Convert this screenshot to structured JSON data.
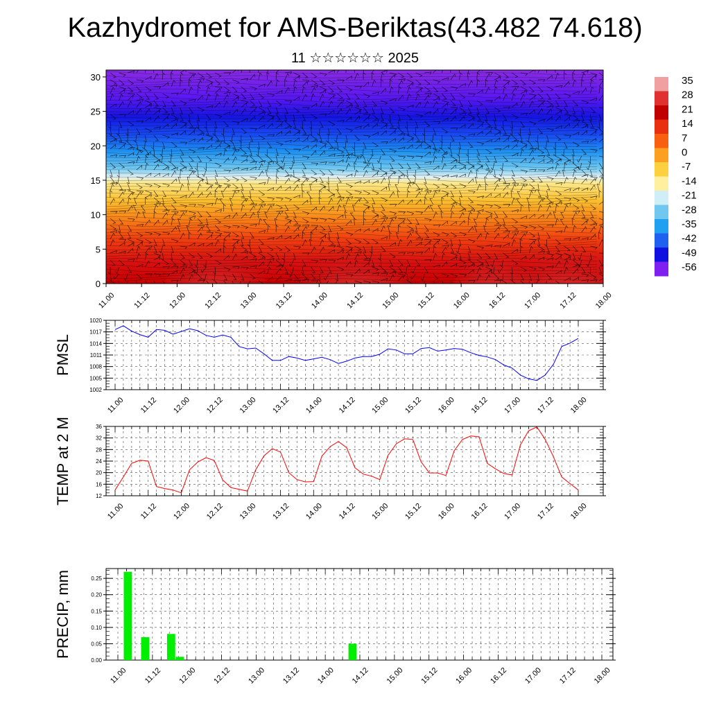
{
  "title": "Kazhydromet for AMS-Beriktas(43.482 74.618)",
  "subtitle": "11 ☆☆☆☆☆☆ 2025",
  "time_labels": [
    "11.00",
    "11.12",
    "12.00",
    "12.12",
    "13.00",
    "13.12",
    "14.00",
    "14.12",
    "15.00",
    "15.12",
    "16.00",
    "16.12",
    "17.00",
    "17.12",
    "18.00"
  ],
  "colorbar": {
    "labels": [
      "35",
      "28",
      "21",
      "14",
      "7",
      "0",
      "-7",
      "-14",
      "-21",
      "-28",
      "-35",
      "-42",
      "-49",
      "-56"
    ],
    "colors": [
      "#f0a0a0",
      "#e03030",
      "#c00000",
      "#e83010",
      "#f86010",
      "#fba020",
      "#fdd040",
      "#fff0a0",
      "#d0eef8",
      "#70c8f0",
      "#20a0f0",
      "#2060f0",
      "#1010e0",
      "#8020f0"
    ]
  },
  "chart_data": [
    {
      "type": "heatmap",
      "title": "Kazhydromet for AMS-Beriktas(43.482 74.618)",
      "xlabel": "",
      "ylabel": "",
      "x": [
        "11.00",
        "11.12",
        "12.00",
        "12.12",
        "13.00",
        "13.12",
        "14.00",
        "14.12",
        "15.00",
        "15.12",
        "16.00",
        "16.12",
        "17.00",
        "17.12",
        "18.00"
      ],
      "yticks": [
        0,
        5,
        10,
        15,
        20,
        25,
        30
      ],
      "ylim": [
        0,
        31
      ],
      "colorbar_range": [
        -56,
        35
      ]
    },
    {
      "type": "line",
      "ylabel": "PMSL",
      "yticks": [
        1002,
        1005,
        1008,
        1011,
        1014,
        1017,
        1020
      ],
      "ylim": [
        1002,
        1020
      ],
      "series": [
        {
          "color": "#0000ff",
          "values": [
            1017.6,
            1018.6,
            1017.2,
            1016.3,
            1015.6,
            1017.6,
            1017.4,
            1016.4,
            1017.1,
            1017.8,
            1017.3,
            1016.1,
            1015.6,
            1016.2,
            1015.6,
            1013.2,
            1012.6,
            1012.8,
            1011.3,
            1009.6,
            1009.6,
            1010.6,
            1010.2,
            1009.6,
            1010.0,
            1010.4,
            1009.8,
            1008.8,
            1009.4,
            1010.2,
            1010.6,
            1010.6,
            1011.2,
            1012.6,
            1012.3,
            1011.3,
            1011.3,
            1012.7,
            1012.9,
            1012.0,
            1012.3,
            1012.7,
            1012.5,
            1011.6,
            1010.9,
            1010.5,
            1009.8,
            1008.4,
            1007.6,
            1005.8,
            1004.8,
            1004.4,
            1005.8,
            1008.6,
            1013.2,
            1014.1,
            1015.3
          ]
        }
      ]
    },
    {
      "type": "line",
      "ylabel": "TEMP at 2 M",
      "yticks": [
        12,
        16,
        20,
        24,
        28,
        32,
        36
      ],
      "ylim": [
        12,
        36
      ],
      "series": [
        {
          "color": "#ff0000",
          "values": [
            14.0,
            18.5,
            23.2,
            24.3,
            24.0,
            15.2,
            14.5,
            14.0,
            13.0,
            21.0,
            23.7,
            25.2,
            24.2,
            17.5,
            14.8,
            14.2,
            13.6,
            21.0,
            25.8,
            28.3,
            27.1,
            20.0,
            17.6,
            16.8,
            16.9,
            25.7,
            29.0,
            30.8,
            28.6,
            21.7,
            19.5,
            18.8,
            17.6,
            26.0,
            30.0,
            31.7,
            31.5,
            23.7,
            19.9,
            19.9,
            19.0,
            27.6,
            31.5,
            32.7,
            32.4,
            23.2,
            21.3,
            19.7,
            19.2,
            29.6,
            34.5,
            35.8,
            31.5,
            25.5,
            18.5,
            16.2,
            14.0
          ]
        }
      ]
    },
    {
      "type": "bar",
      "ylabel": "PRECIP, mm",
      "yticks": [
        0.0,
        0.05,
        0.1,
        0.15,
        0.2,
        0.25
      ],
      "ylim": [
        0,
        0.28
      ],
      "color": "#00ee00",
      "x_index": [
        1,
        3,
        6,
        7,
        27
      ],
      "values": [
        0.27,
        0.07,
        0.08,
        0.01,
        0.05
      ]
    }
  ]
}
